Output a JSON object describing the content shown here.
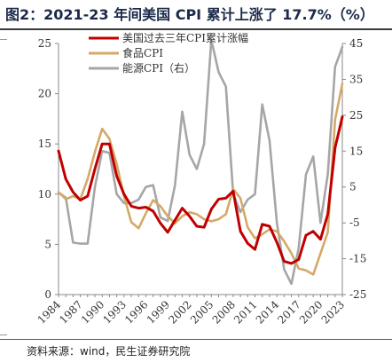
{
  "title": "图2：2021-23 年间美国 CPI 累计上涨了 17.7%（%）",
  "source": "资料来源：wind，民生证券研究院",
  "chart_data": {
    "type": "line",
    "x": [
      1984,
      1985,
      1986,
      1987,
      1988,
      1989,
      1990,
      1991,
      1992,
      1993,
      1994,
      1995,
      1996,
      1997,
      1998,
      1999,
      2000,
      2001,
      2002,
      2003,
      2004,
      2005,
      2006,
      2007,
      2008,
      2009,
      2010,
      2011,
      2012,
      2013,
      2014,
      2015,
      2016,
      2017,
      2018,
      2019,
      2020,
      2021,
      2022,
      2023
    ],
    "xticks": [
      "1984",
      "1987",
      "1990",
      "1993",
      "1996",
      "1999",
      "2002",
      "2005",
      "2008",
      "2011",
      "2014",
      "2017",
      "2020",
      "2023"
    ],
    "ylim_left": [
      0,
      25
    ],
    "yticks_left": [
      "0",
      "5",
      "10",
      "15",
      "20",
      "25"
    ],
    "ylim_right": [
      -25,
      45
    ],
    "yticks_right": [
      "-25",
      "-15",
      "-5",
      "5",
      "15",
      "25",
      "35",
      "45"
    ],
    "legend_position": "top-center",
    "series": [
      {
        "name": "美国过去三年CPI累计涨幅",
        "axis": "left",
        "color": "#c00000",
        "values": [
          14.3,
          11.5,
          10.2,
          9.4,
          9.8,
          12.5,
          15.0,
          15.0,
          11.8,
          10.0,
          8.8,
          8.6,
          8.7,
          8.3,
          7.1,
          6.2,
          7.4,
          8.6,
          7.8,
          6.8,
          6.7,
          8.5,
          9.5,
          9.6,
          10.3,
          6.3,
          5.1,
          4.5,
          7.0,
          6.8,
          5.2,
          3.3,
          3.1,
          3.5,
          5.9,
          6.3,
          5.5,
          8.0,
          14.6,
          17.7
        ]
      },
      {
        "name": "食品CPI",
        "axis": "left",
        "color": "#d4a968",
        "values": [
          10.2,
          9.5,
          9.8,
          9.5,
          11.5,
          14.2,
          16.5,
          15.5,
          13.0,
          9.8,
          7.2,
          6.6,
          8.1,
          9.4,
          8.8,
          7.8,
          7.1,
          7.8,
          8.2,
          8.0,
          7.5,
          7.3,
          7.5,
          8.0,
          10.5,
          9.6,
          6.7,
          5.6,
          6.0,
          6.5,
          6.3,
          5.3,
          4.1,
          2.6,
          2.4,
          2.0,
          4.1,
          6.2,
          17.4,
          21.0
        ]
      },
      {
        "name": "能源CPI（右）",
        "axis": "right",
        "color": "#a6a6a6",
        "values": [
          3.5,
          2.0,
          -10.5,
          -10.8,
          -10.8,
          5.0,
          15.0,
          14.5,
          3.0,
          0.5,
          0.5,
          1.5,
          5.0,
          5.5,
          -3.5,
          -4.5,
          5.5,
          26.0,
          14.0,
          10.0,
          17.0,
          46.0,
          37.0,
          33.0,
          3.0,
          -2.0,
          1.5,
          3.0,
          28.0,
          18.0,
          -5.0,
          -18.0,
          -22.0,
          -12.0,
          8.5,
          13.5,
          -5.0,
          8.5,
          38.5,
          44.0
        ]
      }
    ]
  }
}
